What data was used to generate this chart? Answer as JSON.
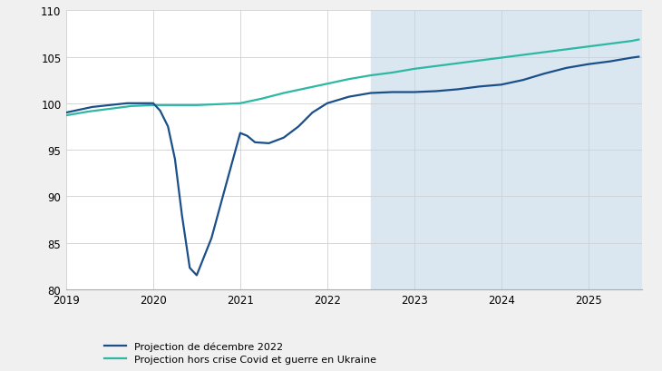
{
  "blue_x": [
    2019.0,
    2019.15,
    2019.3,
    2019.5,
    2019.7,
    2019.85,
    2020.0,
    2020.08,
    2020.17,
    2020.25,
    2020.33,
    2020.42,
    2020.5,
    2020.67,
    2020.83,
    2021.0,
    2021.08,
    2021.17,
    2021.33,
    2021.5,
    2021.67,
    2021.83,
    2022.0,
    2022.25,
    2022.5,
    2022.75,
    2023.0,
    2023.25,
    2023.5,
    2023.75,
    2024.0,
    2024.25,
    2024.5,
    2024.75,
    2025.0,
    2025.25,
    2025.5,
    2025.58
  ],
  "blue_y": [
    99.0,
    99.3,
    99.6,
    99.8,
    100.0,
    100.0,
    100.0,
    99.2,
    97.5,
    94.0,
    88.0,
    82.3,
    81.5,
    85.5,
    91.0,
    96.8,
    96.5,
    95.8,
    95.7,
    96.3,
    97.5,
    99.0,
    100.0,
    100.7,
    101.1,
    101.2,
    101.2,
    101.3,
    101.5,
    101.8,
    102.0,
    102.5,
    103.2,
    103.8,
    104.2,
    104.5,
    104.9,
    105.0
  ],
  "green_x": [
    2019.0,
    2019.25,
    2019.5,
    2019.75,
    2020.0,
    2020.25,
    2020.5,
    2020.75,
    2021.0,
    2021.25,
    2021.5,
    2021.75,
    2022.0,
    2022.25,
    2022.5,
    2022.75,
    2023.0,
    2023.25,
    2023.5,
    2023.75,
    2024.0,
    2024.25,
    2024.5,
    2024.75,
    2025.0,
    2025.25,
    2025.5,
    2025.58
  ],
  "green_y": [
    98.7,
    99.1,
    99.4,
    99.7,
    99.8,
    99.8,
    99.8,
    99.9,
    100.0,
    100.5,
    101.1,
    101.6,
    102.1,
    102.6,
    103.0,
    103.3,
    103.7,
    104.0,
    104.3,
    104.6,
    104.9,
    105.2,
    105.5,
    105.8,
    106.1,
    106.4,
    106.7,
    106.85
  ],
  "shade_start": 2022.5,
  "shade_end": 2025.62,
  "xlim": [
    2019.0,
    2025.62
  ],
  "ylim": [
    80,
    110
  ],
  "yticks": [
    80,
    85,
    90,
    95,
    100,
    105,
    110
  ],
  "xticks": [
    2019,
    2020,
    2021,
    2022,
    2023,
    2024,
    2025
  ],
  "blue_color": "#1a4f8a",
  "green_color": "#2cb8a2",
  "shade_color": "#dae6f0",
  "grid_color": "#d0d0d0",
  "legend_label_blue": "Projection de décembre 2022",
  "legend_label_green": "Projection hors crise Covid et guerre en Ukraine",
  "bg_color": "#ffffff",
  "fig_bg_color": "#f0f0f0"
}
